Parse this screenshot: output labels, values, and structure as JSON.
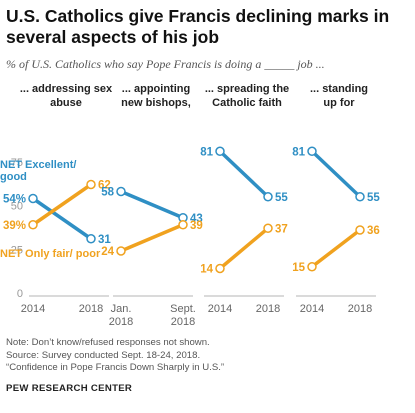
{
  "title": "U.S. Catholics give Francis declining marks in several aspects of his job",
  "subtitle": "% of U.S. Catholics who say Pope Francis is doing a _____ job ...",
  "colors": {
    "excellent": "#2f8fc4",
    "fair": "#f0a21f",
    "axis": "#b5b5b5",
    "text": "#555555"
  },
  "legend": {
    "excellent": "NET Excellent/ good",
    "fair": "NET Only fair/ poor"
  },
  "y_ticks": [
    "75",
    "50",
    "25",
    "0"
  ],
  "chart_data": [
    {
      "type": "line",
      "title": "... addressing sex abuse",
      "x_labels": [
        "2014",
        "2018"
      ],
      "ylim": [
        0,
        100
      ],
      "series": [
        {
          "name": "NET Excellent/good",
          "values": [
            54,
            31
          ],
          "labels": [
            "54%",
            "31"
          ]
        },
        {
          "name": "NET Only fair/poor",
          "values": [
            39,
            62
          ],
          "labels": [
            "39%",
            "62"
          ]
        }
      ]
    },
    {
      "type": "line",
      "title": "... appointing new bishops, cardinals",
      "x_labels": [
        "Jan. 2018",
        "Sept. 2018"
      ],
      "ylim": [
        0,
        100
      ],
      "series": [
        {
          "name": "NET Excellent/good",
          "values": [
            58,
            43
          ],
          "labels": [
            "58",
            "43"
          ]
        },
        {
          "name": "NET Only fair/poor",
          "values": [
            24,
            39
          ],
          "labels": [
            "24",
            "39"
          ]
        }
      ]
    },
    {
      "type": "line",
      "title": "... spreading the Catholic faith",
      "x_labels": [
        "2014",
        "2018"
      ],
      "ylim": [
        0,
        100
      ],
      "series": [
        {
          "name": "NET Excellent/good",
          "values": [
            81,
            55
          ],
          "labels": [
            "81",
            "55"
          ]
        },
        {
          "name": "NET Only fair/poor",
          "values": [
            14,
            37
          ],
          "labels": [
            "14",
            "37"
          ]
        }
      ]
    },
    {
      "type": "line",
      "title": "... standing up for traditional morals",
      "x_labels": [
        "2014",
        "2018"
      ],
      "ylim": [
        0,
        100
      ],
      "series": [
        {
          "name": "NET Excellent/good",
          "values": [
            81,
            55
          ],
          "labels": [
            "81",
            "55"
          ]
        },
        {
          "name": "NET Only fair/poor",
          "values": [
            15,
            36
          ],
          "labels": [
            "15",
            "36"
          ]
        }
      ]
    }
  ],
  "notes": [
    "Note: Don’t know/refused responses not shown.",
    "Source: Survey conducted Sept. 18-24, 2018.",
    "“Confidence in Pope Francis Down Sharply in U.S.”"
  ],
  "brand": "PEW RESEARCH CENTER"
}
